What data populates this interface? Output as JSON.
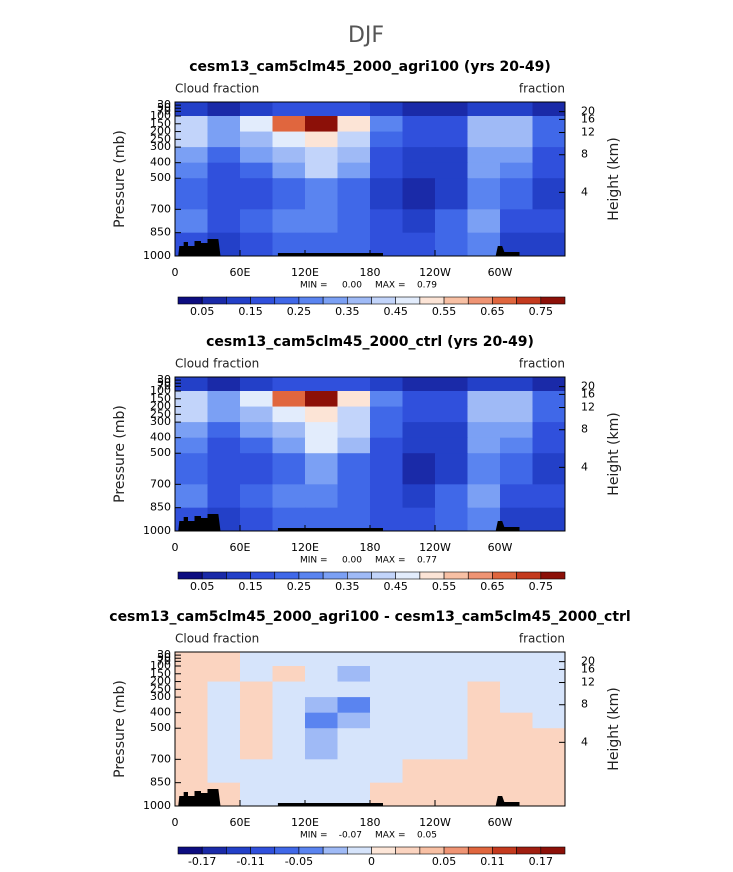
{
  "figure_title": "DJF",
  "chart_data": [
    {
      "type": "contour",
      "title": "cesm13_cam5clm45_2000_agri100 (yrs 20-49)",
      "left_label": "Cloud fraction",
      "right_label": "fraction",
      "ylabel": "Pressure (mb)",
      "y2label": "Height (km)",
      "xlim": [
        0,
        360
      ],
      "xticks": [
        0,
        {
          "value": 60,
          "label": "60E"
        },
        {
          "value": 120,
          "label": "120E"
        },
        180,
        {
          "value": 240,
          "label": "120W"
        },
        {
          "value": 300,
          "label": "60W"
        }
      ],
      "ylim": [
        1000,
        10
      ],
      "yticks": [
        1000,
        850,
        700,
        500,
        400,
        300,
        250,
        200,
        150,
        100,
        70,
        50,
        30
      ],
      "y2ticks": [
        4,
        8,
        12,
        16,
        20
      ],
      "x_edges": [
        0,
        30,
        60,
        90,
        120,
        150,
        180,
        210,
        240,
        270,
        300,
        330,
        360
      ],
      "p_edges": [
        10,
        100,
        200,
        300,
        400,
        500,
        700,
        850,
        1000
      ],
      "z": [
        [
          0.1,
          0.05,
          0.1,
          0.15,
          0.15,
          0.15,
          0.1,
          0.05,
          0.05,
          0.1,
          0.1,
          0.05
        ],
        [
          0.4,
          0.3,
          0.45,
          0.65,
          0.75,
          0.5,
          0.25,
          0.15,
          0.15,
          0.35,
          0.35,
          0.2
        ],
        [
          0.4,
          0.3,
          0.35,
          0.45,
          0.5,
          0.4,
          0.2,
          0.15,
          0.15,
          0.35,
          0.35,
          0.2
        ],
        [
          0.3,
          0.2,
          0.3,
          0.35,
          0.4,
          0.35,
          0.15,
          0.1,
          0.1,
          0.3,
          0.3,
          0.15
        ],
        [
          0.25,
          0.15,
          0.2,
          0.3,
          0.4,
          0.3,
          0.15,
          0.1,
          0.1,
          0.3,
          0.25,
          0.15
        ],
        [
          0.2,
          0.15,
          0.15,
          0.2,
          0.25,
          0.2,
          0.1,
          0.05,
          0.1,
          0.25,
          0.2,
          0.1
        ],
        [
          0.25,
          0.15,
          0.2,
          0.25,
          0.25,
          0.2,
          0.15,
          0.1,
          0.2,
          0.3,
          0.15,
          0.15
        ],
        [
          0.15,
          0.1,
          0.15,
          0.2,
          0.2,
          0.2,
          0.15,
          0.15,
          0.2,
          0.25,
          0.1,
          0.1
        ]
      ],
      "levels": [
        0.05,
        0.1,
        0.15,
        0.2,
        0.25,
        0.3,
        0.35,
        0.4,
        0.45,
        0.5,
        0.55,
        0.6,
        0.65,
        0.7,
        0.75
      ],
      "colors": [
        "#0d0d80",
        "#1a2aa8",
        "#2340c8",
        "#3050dc",
        "#4068e8",
        "#5a84f0",
        "#7ba0f4",
        "#9fbaf6",
        "#c2d4fa",
        "#e2ecfc",
        "#fce4d6",
        "#f8c0a4",
        "#ef9474",
        "#e0663e",
        "#c43a1e",
        "#8c1008"
      ],
      "cbticks": [
        0.05,
        0.15,
        0.25,
        0.35,
        0.45,
        0.55,
        0.65,
        0.75
      ],
      "stats": [
        {
          "name": "MIN =",
          "value": 0,
          "label": "0.00"
        },
        {
          "name": "MAX =",
          "value": 0.79,
          "label": "0.79"
        }
      ]
    },
    {
      "type": "contour",
      "title": "cesm13_cam5clm45_2000_ctrl (yrs 20-49)",
      "left_label": "Cloud fraction",
      "right_label": "fraction",
      "ylabel": "Pressure (mb)",
      "y2label": "Height (km)",
      "xlim": [
        0,
        360
      ],
      "xticks": [
        0,
        {
          "value": 60,
          "label": "60E"
        },
        {
          "value": 120,
          "label": "120E"
        },
        180,
        {
          "value": 240,
          "label": "120W"
        },
        {
          "value": 300,
          "label": "60W"
        }
      ],
      "ylim": [
        1000,
        10
      ],
      "yticks": [
        1000,
        850,
        700,
        500,
        400,
        300,
        250,
        200,
        150,
        100,
        70,
        50,
        30
      ],
      "y2ticks": [
        4,
        8,
        12,
        16,
        20
      ],
      "x_edges": [
        0,
        30,
        60,
        90,
        120,
        150,
        180,
        210,
        240,
        270,
        300,
        330,
        360
      ],
      "p_edges": [
        10,
        100,
        200,
        300,
        400,
        500,
        700,
        850,
        1000
      ],
      "z": [
        [
          0.1,
          0.05,
          0.1,
          0.15,
          0.15,
          0.15,
          0.1,
          0.05,
          0.05,
          0.1,
          0.1,
          0.05
        ],
        [
          0.4,
          0.3,
          0.45,
          0.65,
          0.75,
          0.5,
          0.25,
          0.15,
          0.15,
          0.35,
          0.35,
          0.2
        ],
        [
          0.4,
          0.3,
          0.35,
          0.45,
          0.5,
          0.4,
          0.2,
          0.15,
          0.15,
          0.35,
          0.35,
          0.2
        ],
        [
          0.3,
          0.2,
          0.3,
          0.35,
          0.45,
          0.4,
          0.2,
          0.1,
          0.1,
          0.3,
          0.3,
          0.15
        ],
        [
          0.25,
          0.15,
          0.2,
          0.3,
          0.45,
          0.35,
          0.15,
          0.1,
          0.1,
          0.3,
          0.25,
          0.15
        ],
        [
          0.2,
          0.15,
          0.15,
          0.2,
          0.3,
          0.2,
          0.15,
          0.05,
          0.1,
          0.25,
          0.2,
          0.1
        ],
        [
          0.25,
          0.15,
          0.2,
          0.25,
          0.25,
          0.2,
          0.15,
          0.1,
          0.2,
          0.3,
          0.15,
          0.15
        ],
        [
          0.15,
          0.1,
          0.15,
          0.2,
          0.2,
          0.2,
          0.15,
          0.15,
          0.2,
          0.25,
          0.1,
          0.1
        ]
      ],
      "levels": [
        0.05,
        0.1,
        0.15,
        0.2,
        0.25,
        0.3,
        0.35,
        0.4,
        0.45,
        0.5,
        0.55,
        0.6,
        0.65,
        0.7,
        0.75
      ],
      "colors": [
        "#0d0d80",
        "#1a2aa8",
        "#2340c8",
        "#3050dc",
        "#4068e8",
        "#5a84f0",
        "#7ba0f4",
        "#9fbaf6",
        "#c2d4fa",
        "#e2ecfc",
        "#fce4d6",
        "#f8c0a4",
        "#ef9474",
        "#e0663e",
        "#c43a1e",
        "#8c1008"
      ],
      "cbticks": [
        0.05,
        0.15,
        0.25,
        0.35,
        0.45,
        0.55,
        0.65,
        0.75
      ],
      "stats": [
        {
          "name": "MIN =",
          "value": 0,
          "label": "0.00"
        },
        {
          "name": "MAX =",
          "value": 0.77,
          "label": "0.77"
        }
      ]
    },
    {
      "type": "contour",
      "title": "cesm13_cam5clm45_2000_agri100 - cesm13_cam5clm45_2000_ctrl",
      "left_label": "Cloud fraction",
      "right_label": "fraction",
      "ylabel": "Pressure (mb)",
      "y2label": "Height (km)",
      "xlim": [
        0,
        360
      ],
      "xticks": [
        0,
        {
          "value": 60,
          "label": "60E"
        },
        {
          "value": 120,
          "label": "120E"
        },
        180,
        {
          "value": 240,
          "label": "120W"
        },
        {
          "value": 300,
          "label": "60W"
        }
      ],
      "ylim": [
        1000,
        10
      ],
      "yticks": [
        1000,
        850,
        700,
        500,
        400,
        300,
        250,
        200,
        150,
        100,
        70,
        50,
        30
      ],
      "y2ticks": [
        4,
        8,
        12,
        16,
        20
      ],
      "x_edges": [
        0,
        30,
        60,
        90,
        120,
        150,
        180,
        210,
        240,
        270,
        300,
        330,
        360
      ],
      "p_edges": [
        10,
        100,
        200,
        300,
        400,
        500,
        700,
        850,
        1000
      ],
      "z": [
        [
          0.01,
          0.01,
          -0.01,
          -0.01,
          -0.01,
          -0.01,
          -0.01,
          -0.01,
          -0.01,
          -0.01,
          -0.01,
          -0.01
        ],
        [
          0.01,
          0.01,
          -0.01,
          0.01,
          -0.01,
          -0.03,
          -0.01,
          -0.01,
          -0.01,
          -0.01,
          -0.01,
          -0.01
        ],
        [
          0.01,
          -0.01,
          0.01,
          -0.01,
          -0.01,
          -0.01,
          -0.01,
          -0.01,
          -0.01,
          0.01,
          -0.01,
          -0.01
        ],
        [
          0.01,
          -0.01,
          0.01,
          -0.01,
          -0.03,
          -0.05,
          -0.01,
          -0.01,
          -0.01,
          0.01,
          -0.01,
          -0.01
        ],
        [
          0.01,
          -0.01,
          0.01,
          -0.01,
          -0.05,
          -0.03,
          -0.01,
          -0.01,
          -0.01,
          0.01,
          0.01,
          -0.01
        ],
        [
          0.01,
          -0.01,
          0.01,
          -0.01,
          -0.03,
          -0.01,
          -0.01,
          -0.01,
          -0.01,
          0.01,
          0.01,
          0.01
        ],
        [
          0.01,
          -0.01,
          -0.01,
          -0.01,
          -0.01,
          -0.01,
          -0.01,
          0.01,
          0.01,
          0.01,
          0.01,
          0.01
        ],
        [
          0.01,
          0.01,
          -0.01,
          -0.01,
          -0.01,
          -0.01,
          0.01,
          0.01,
          0.01,
          0.01,
          0.01,
          0.01
        ]
      ],
      "levels": [
        -0.17,
        -0.14,
        -0.11,
        -0.08,
        -0.05,
        -0.03,
        -0.01,
        0,
        0.01,
        0.03,
        0.05,
        0.08,
        0.11,
        0.14,
        0.17
      ],
      "colors": [
        "#0d0d80",
        "#1a2aa8",
        "#2340c8",
        "#3050dc",
        "#4068e8",
        "#5a84f0",
        "#9fbaf6",
        "#d6e4fb",
        "#fde6d8",
        "#fbd4c0",
        "#f8c0a4",
        "#ef9474",
        "#e0663e",
        "#c43a1e",
        "#a01e10",
        "#8c1008"
      ],
      "cbticks": [
        -0.17,
        -0.11,
        -0.05,
        0,
        0.05,
        0.11,
        0.17
      ],
      "stats": [
        {
          "name": "MIN =",
          "value": -0.07,
          "label": "-0.07"
        },
        {
          "name": "MAX =",
          "value": 0.05,
          "label": "0.05"
        }
      ]
    }
  ]
}
